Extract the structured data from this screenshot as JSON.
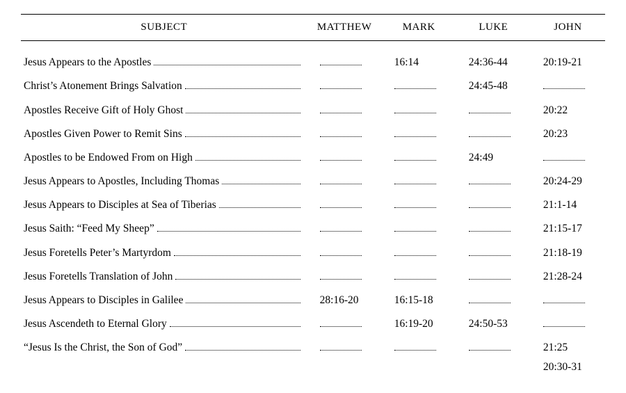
{
  "colors": {
    "background": "#ffffff",
    "text": "#000000",
    "rule": "#000000",
    "dots": "#000000"
  },
  "typography": {
    "font_family": "Century Schoolbook / Bookman serif",
    "body_fontsize_pt": 11.5,
    "header_fontsize_pt": 11,
    "header_style": "small-caps"
  },
  "columns": {
    "subject": "SUBJECT",
    "matthew": "MATTHEW",
    "mark": "MARK",
    "luke": "LUKE",
    "john": "JOHN"
  },
  "rows": [
    {
      "subject": "Jesus Appears to the Apostles",
      "matthew": "",
      "mark": "16:14",
      "luke": "24:36-44",
      "john": "20:19-21"
    },
    {
      "subject": "Christ’s Atonement Brings Salvation",
      "matthew": "",
      "mark": "",
      "luke": "24:45-48",
      "john": ""
    },
    {
      "subject": "Apostles Receive Gift of Holy Ghost",
      "matthew": "",
      "mark": "",
      "luke": "",
      "john": "20:22"
    },
    {
      "subject": "Apostles Given Power to Remit Sins",
      "matthew": "",
      "mark": "",
      "luke": "",
      "john": "20:23"
    },
    {
      "subject": "Apostles to be Endowed From on High",
      "matthew": "",
      "mark": "",
      "luke": "24:49",
      "john": ""
    },
    {
      "subject": "Jesus Appears to Apostles, Including Thomas",
      "matthew": "",
      "mark": "",
      "luke": "",
      "john": "20:24-29"
    },
    {
      "subject": "Jesus Appears to Disciples at Sea of Tiberias",
      "matthew": "",
      "mark": "",
      "luke": "",
      "john": "21:1-14"
    },
    {
      "subject": "Jesus Saith:  “Feed My Sheep”",
      "matthew": "",
      "mark": "",
      "luke": "",
      "john": "21:15-17"
    },
    {
      "subject": "Jesus Foretells Peter’s Martyrdom",
      "matthew": "",
      "mark": "",
      "luke": "",
      "john": "21:18-19"
    },
    {
      "subject": "Jesus Foretells Translation of John",
      "matthew": "",
      "mark": "",
      "luke": "",
      "john": "21:28-24"
    },
    {
      "subject": "Jesus Appears to Disciples in Galilee",
      "matthew": "28:16-20",
      "mark": "16:15-18",
      "luke": "",
      "john": ""
    },
    {
      "subject": "Jesus Ascendeth to Eternal Glory",
      "matthew": "",
      "mark": "16:19-20",
      "luke": "24:50-53",
      "john": ""
    },
    {
      "subject": "“Jesus Is the Christ, the Son of God”",
      "matthew": "",
      "mark": "",
      "luke": "",
      "john": "21:25",
      "john_extra": "20:30-31"
    }
  ]
}
